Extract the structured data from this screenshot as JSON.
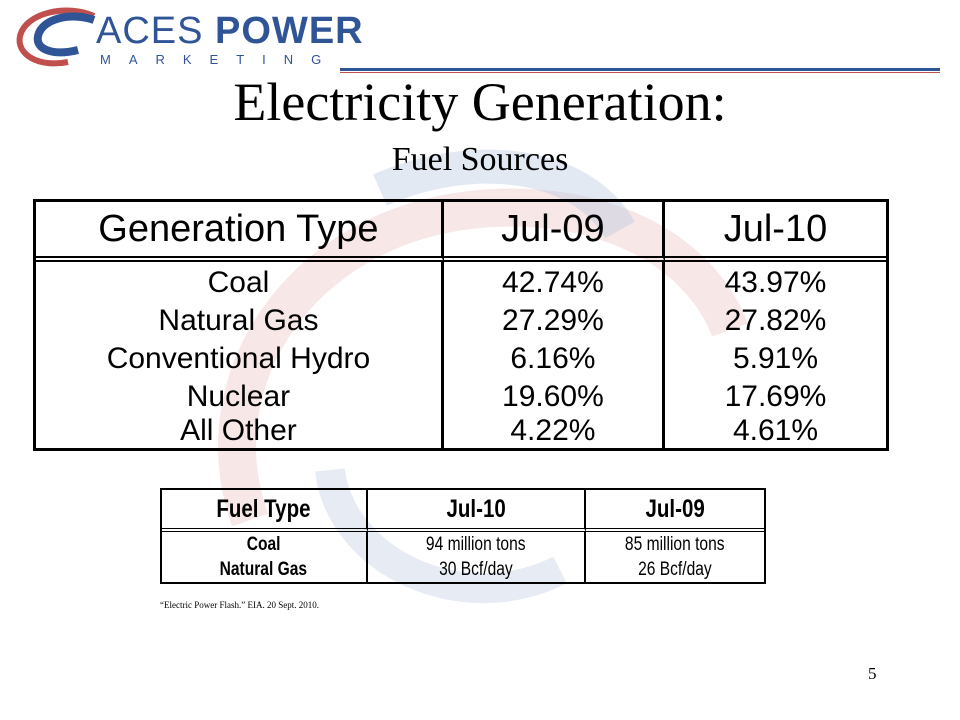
{
  "logo": {
    "line1_a": "ACES",
    "line1_b": "POWER",
    "line2": "MARKETING",
    "brand_blue": "#2f5597",
    "brand_red": "#c0504d"
  },
  "slide": {
    "title": "Electricity Generation:",
    "subtitle": "Fuel Sources",
    "page_number": "5"
  },
  "generation_table": {
    "headers": [
      "Generation Type",
      "Jul-09",
      "Jul-10"
    ],
    "rows": [
      [
        "Coal",
        "42.74%",
        "43.97%"
      ],
      [
        "Natural Gas",
        "27.29%",
        "27.82%"
      ],
      [
        "Conventional Hydro",
        "6.16%",
        "5.91%"
      ],
      [
        "Nuclear",
        "19.60%",
        "17.69%"
      ],
      [
        "All Other",
        "4.22%",
        "4.61%"
      ]
    ]
  },
  "fuel_table": {
    "headers": [
      "Fuel Type",
      "Jul-10",
      "Jul-09"
    ],
    "rows": [
      [
        "Coal",
        "94 million tons",
        "85 million tons"
      ],
      [
        "Natural Gas",
        "30 Bcf/day",
        "26 Bcf/day"
      ]
    ]
  },
  "citation": "“Electric Power Flash.” EIA. 20 Sept. 2010."
}
